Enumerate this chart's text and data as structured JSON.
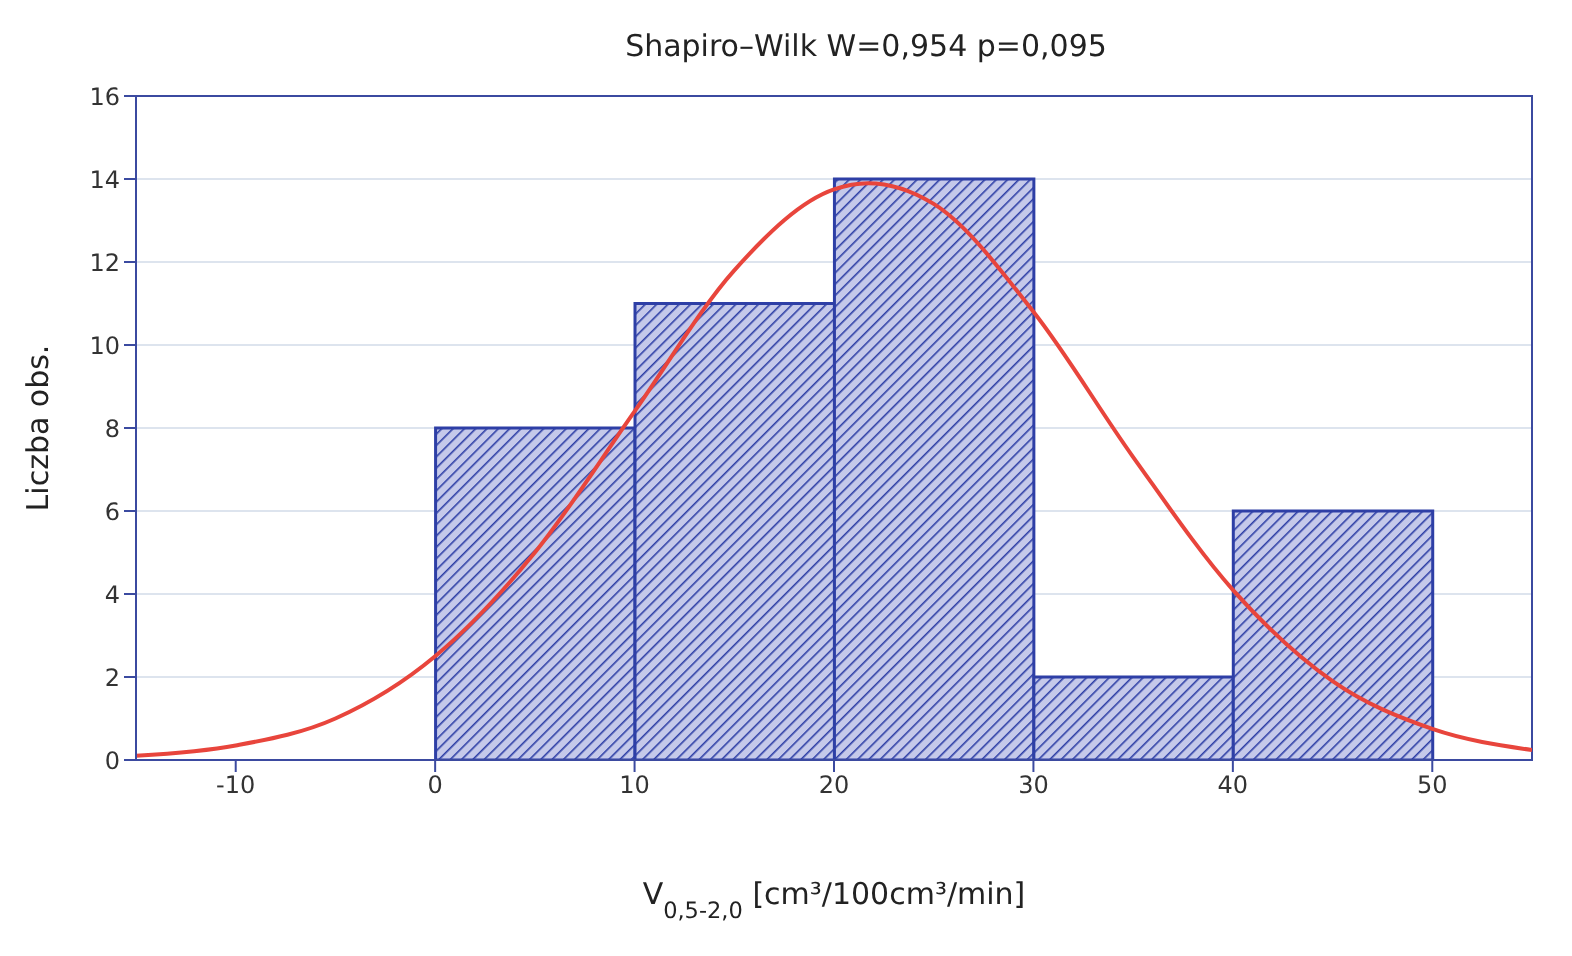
{
  "chart_data": {
    "type": "histogram",
    "title": "Shapiro–Wilk W=0,954 p=0,095",
    "xlabel": "V$_{0,5-2,0}$ [cm³/100cm³/min]",
    "ylabel": "Liczba obs.",
    "bins": [
      0,
      10,
      20,
      30,
      40,
      50
    ],
    "values": [
      8,
      11,
      14,
      2,
      6
    ],
    "color": "#2e3fa6",
    "series": [
      {
        "type": "line",
        "color": "#e8453c",
        "x": [
          -15,
          -10,
          -5,
          0,
          5,
          10,
          15,
          20,
          21.7,
          25,
          30,
          35,
          40,
          45,
          50,
          55
        ],
        "values": [
          0.1,
          0.35,
          1.0,
          2.5,
          5.0,
          8.4,
          11.8,
          13.75,
          13.9,
          13.4,
          10.8,
          7.3,
          4.1,
          1.9,
          0.75,
          0.24
        ]
      }
    ],
    "xlim": [
      -15,
      55
    ],
    "xticks": [
      -10,
      0,
      10,
      20,
      30,
      40,
      50
    ],
    "ylim": [
      0,
      16
    ],
    "yticks": [
      0,
      2,
      4,
      6,
      8,
      10,
      12,
      14,
      16
    ],
    "grid": "y",
    "marker": "none"
  }
}
